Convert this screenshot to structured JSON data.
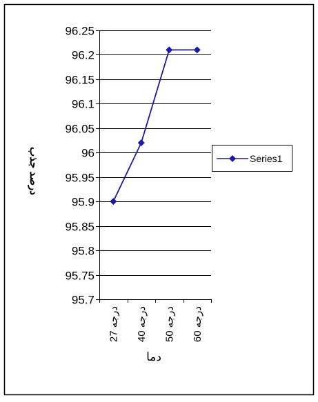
{
  "chart_data": {
    "type": "line",
    "categories": [
      "27 درجه",
      "40 درجه",
      "50 درجه",
      "60 درجه"
    ],
    "series": [
      {
        "name": "Series1",
        "values": [
          95.9,
          96.02,
          96.21,
          96.21
        ]
      }
    ],
    "ylabel": "درصد جذب",
    "xlabel": "دما",
    "ylim": [
      95.7,
      96.25
    ],
    "yticks": [
      "95.7",
      "95.75",
      "95.8",
      "95.85",
      "95.9",
      "95.95",
      "96",
      "96.05",
      "96.1",
      "96.15",
      "96.2",
      "96.25"
    ],
    "grid": true,
    "legend_position": "right",
    "colors": {
      "series": "#1a1aa6",
      "grid": "#000000",
      "frame": "#000000",
      "background": "#ffffff"
    }
  }
}
